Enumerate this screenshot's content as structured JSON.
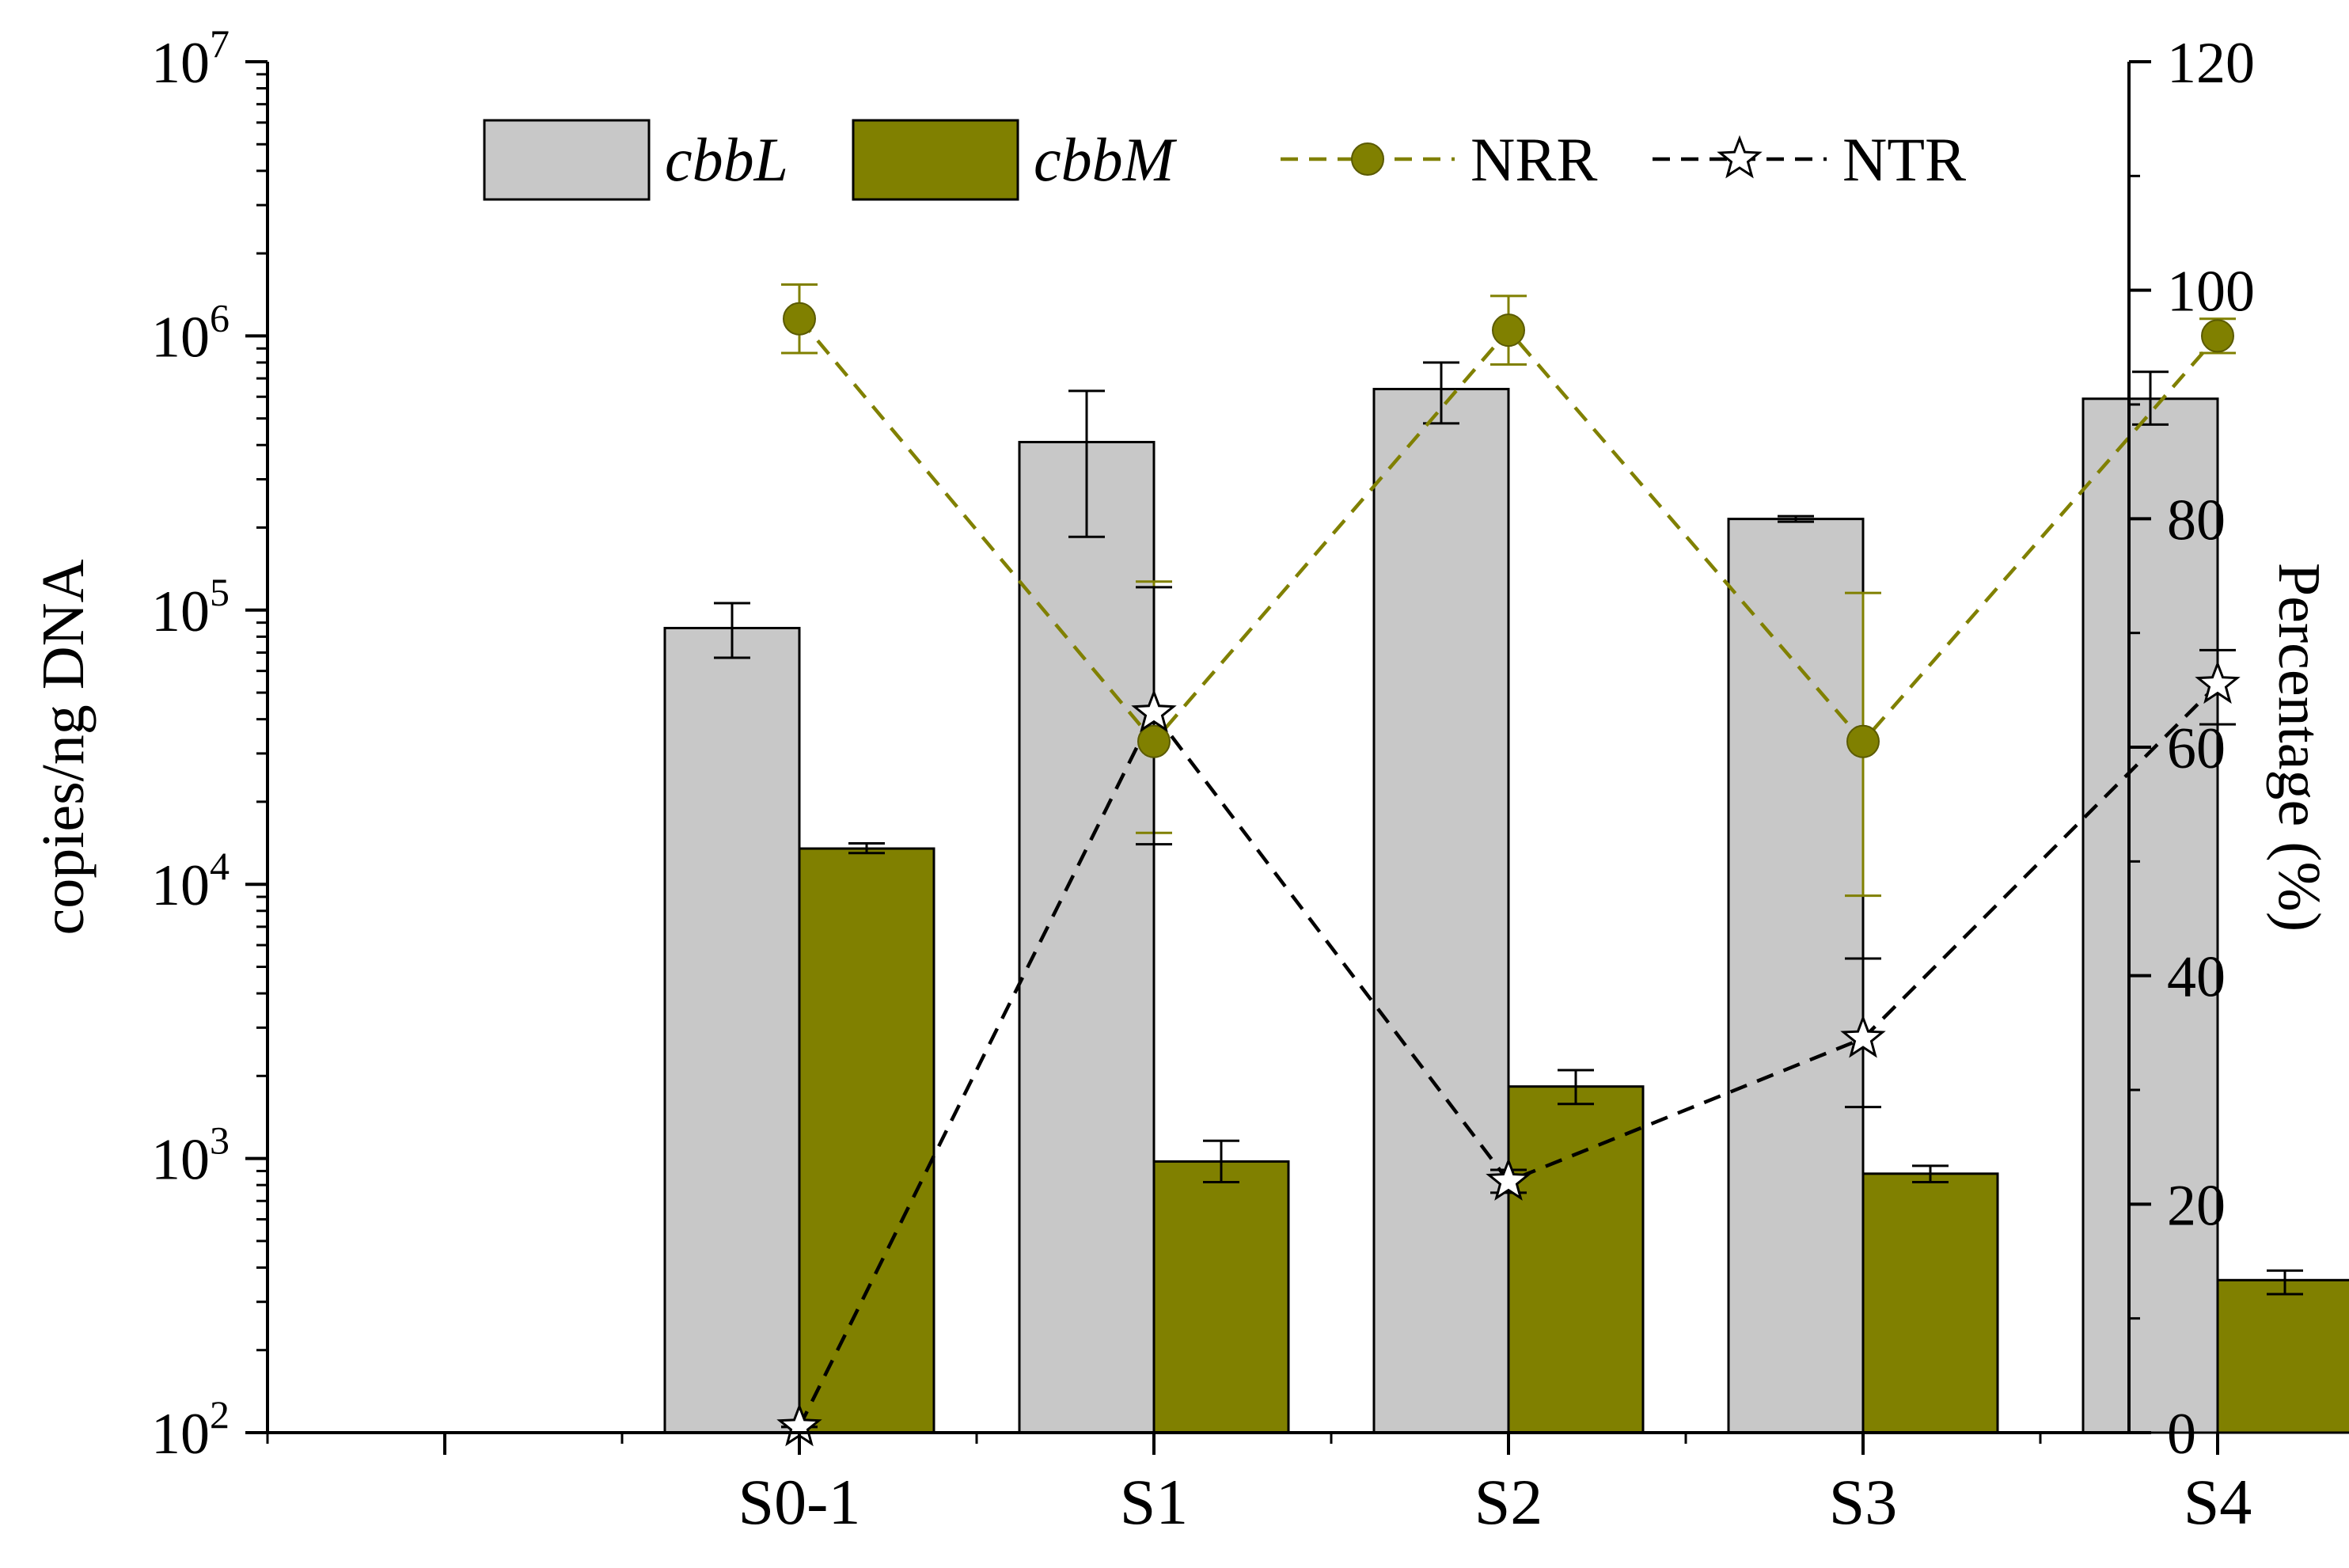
{
  "chart_data": {
    "type": "bar",
    "categories": [
      "S0-1",
      "S1",
      "S2",
      "S3",
      "S4"
    ],
    "left_axis": {
      "label": "copies/ng DNA",
      "scale": "log",
      "range": [
        100,
        10000000
      ],
      "tick_bases": [
        "10",
        "10",
        "10",
        "10",
        "10",
        "10"
      ],
      "tick_exponents": [
        "2",
        "3",
        "4",
        "5",
        "6",
        "7"
      ]
    },
    "right_axis": {
      "label": "Percentage (%)",
      "range": [
        0,
        120
      ],
      "ticks": [
        "0",
        "20",
        "40",
        "60",
        "80",
        "100",
        "120"
      ]
    },
    "bar_series": [
      {
        "name": "cbbL",
        "color": "#c8c8c8",
        "values": [
          86000,
          410000,
          640000,
          215000,
          590000
        ],
        "err_low": [
          67000,
          185000,
          480000,
          210000,
          475000
        ],
        "err_high": [
          106000,
          630000,
          800000,
          220000,
          740000
        ]
      },
      {
        "name": "cbbM",
        "color": "#808000",
        "values": [
          13500,
          975,
          1830,
          880,
          360
        ],
        "err_low": [
          13000,
          820,
          1580,
          820,
          320
        ],
        "err_high": [
          14100,
          1160,
          2100,
          940,
          390
        ]
      }
    ],
    "line_series": [
      {
        "name": "NRR",
        "axis": "right",
        "color": "#808000",
        "marker": "circle",
        "values": [
          97.5,
          60.5,
          96.5,
          60.5,
          96.0
        ],
        "err_low": [
          94.5,
          52.5,
          93.5,
          47.0,
          94.5
        ],
        "err_high": [
          100.5,
          74.5,
          99.5,
          73.5,
          97.5
        ]
      },
      {
        "name": "NTR",
        "axis": "right",
        "color": "#000000",
        "marker": "star",
        "values": [
          0.5,
          63.0,
          22.0,
          34.5,
          65.5
        ],
        "err_low": [
          0.5,
          51.5,
          21.0,
          28.5,
          62.0
        ],
        "err_high": [
          0.5,
          74.0,
          23.0,
          41.5,
          68.5
        ]
      }
    ],
    "legend": {
      "position": "top",
      "items": [
        "cbbL",
        "cbbM",
        "NRR",
        "NTR"
      ]
    }
  }
}
